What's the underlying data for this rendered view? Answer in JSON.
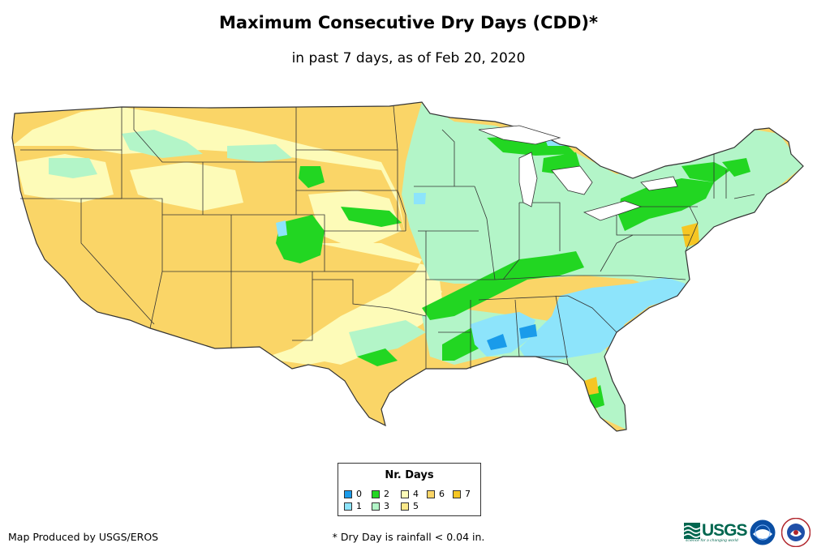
{
  "title": "Maximum Consecutive Dry Days (CDD)*",
  "subtitle": "in past 7 days, as of Feb 20, 2020",
  "legend": {
    "title": "Nr. Days",
    "items": [
      {
        "label": "0",
        "color": "#1a9bea"
      },
      {
        "label": "1",
        "color": "#8de4fb"
      },
      {
        "label": "2",
        "color": "#22d622"
      },
      {
        "label": "3",
        "color": "#b3f5c8"
      },
      {
        "label": "4",
        "color": "#fdfbb8"
      },
      {
        "label": "5",
        "color": "#fbe98a"
      },
      {
        "label": "6",
        "color": "#fad567"
      },
      {
        "label": "7",
        "color": "#f6c623"
      }
    ]
  },
  "footer": {
    "credit": "Map Produced by USGS/EROS",
    "footnote": "* Dry Day is rainfall < 0.04 in."
  },
  "logos": {
    "usgs": "USGS",
    "usgs_tagline": "science for a changing world"
  }
}
